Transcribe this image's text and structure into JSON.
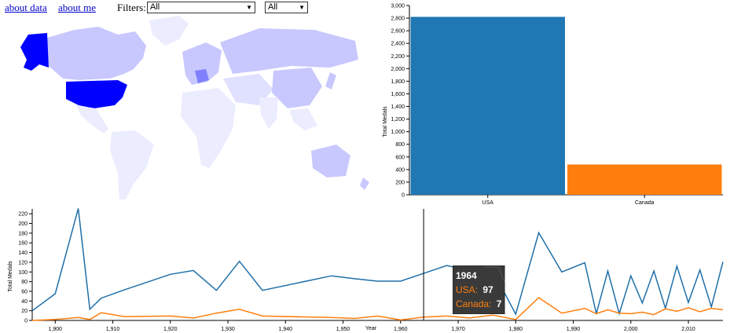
{
  "nav": {
    "about_data": "about data",
    "about_me": "about me"
  },
  "filters": {
    "label": "Filters:",
    "select1_value": "All",
    "select2_value": "All"
  },
  "map": {
    "highlight_color": "#0000ff",
    "light_color": "#c8c8ff",
    "faint_color": "#ececff"
  },
  "chart_data": [
    {
      "type": "bar",
      "categories": [
        "USA",
        "Canada"
      ],
      "values": [
        2820,
        480
      ],
      "colors": [
        "#1f77b4",
        "#ff7f0e"
      ],
      "ylabel": "Total Medals",
      "ylim": [
        0,
        3000
      ],
      "yticks": [
        "0",
        "200",
        "400",
        "600",
        "800",
        "1,000",
        "1,200",
        "1,400",
        "1,600",
        "1,800",
        "2,000",
        "2,200",
        "2,400",
        "2,600",
        "2,800",
        "3,000"
      ]
    },
    {
      "type": "line",
      "xlabel": "Year",
      "ylabel": "Total Medals",
      "ylim": [
        0,
        230
      ],
      "xlim": [
        1896,
        2016
      ],
      "xticks": [
        "1,900",
        "1,910",
        "1,920",
        "1,930",
        "1,940",
        "1,950",
        "1,960",
        "1,970",
        "1,980",
        "1,990",
        "2,000",
        "2,010"
      ],
      "yticks": [
        "0",
        "20",
        "40",
        "60",
        "80",
        "100",
        "120",
        "140",
        "160",
        "180",
        "200",
        "220"
      ],
      "series": [
        {
          "name": "USA",
          "color": "#1f6fa8",
          "x": [
            1896,
            1900,
            1904,
            1906,
            1908,
            1912,
            1920,
            1924,
            1928,
            1932,
            1936,
            1948,
            1952,
            1956,
            1960,
            1964,
            1968,
            1972,
            1976,
            1980,
            1984,
            1988,
            1992,
            1994,
            1996,
            1998,
            2000,
            2002,
            2004,
            2006,
            2008,
            2010,
            2012,
            2014,
            2016
          ],
          "y": [
            20,
            55,
            231,
            23,
            46,
            63,
            95,
            103,
            62,
            122,
            62,
            92,
            86,
            81,
            81,
            97,
            113,
            103,
            103,
            13,
            181,
            100,
            119,
            14,
            102,
            14,
            92,
            36,
            102,
            25,
            112,
            37,
            104,
            28,
            121
          ]
        },
        {
          "name": "Canada",
          "color": "#ff7f0e",
          "x": [
            1896,
            1900,
            1904,
            1906,
            1908,
            1912,
            1920,
            1924,
            1928,
            1932,
            1936,
            1948,
            1952,
            1956,
            1960,
            1964,
            1968,
            1972,
            1976,
            1980,
            1984,
            1988,
            1992,
            1994,
            1996,
            1998,
            2000,
            2002,
            2004,
            2006,
            2008,
            2010,
            2012,
            2014,
            2016
          ],
          "y": [
            0,
            2,
            6,
            2,
            16,
            8,
            9,
            5,
            15,
            23,
            9,
            6,
            4,
            9,
            1,
            7,
            9,
            5,
            11,
            2,
            47,
            15,
            25,
            14,
            22,
            15,
            14,
            17,
            12,
            24,
            19,
            26,
            18,
            25,
            22
          ]
        }
      ]
    }
  ],
  "tooltip": {
    "year": "1964",
    "usa_label": "USA:",
    "usa_value": "97",
    "canada_label": "Canada:",
    "canada_value": "7"
  }
}
